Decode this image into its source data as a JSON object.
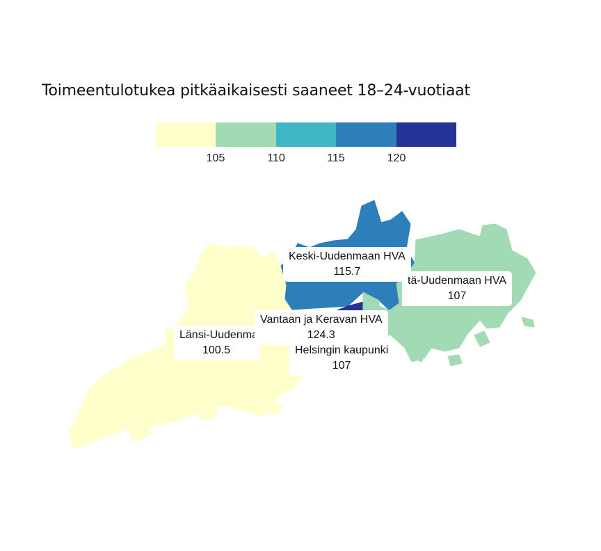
{
  "title": "Toimeentulotukea pitkäaikaisesti saaneet 18–24-vuotiaat",
  "legend": {
    "colors": [
      "#ffffcc",
      "#a1dab4",
      "#41b6c4",
      "#2c7fb8",
      "#253494"
    ],
    "ticks": [
      "105",
      "110",
      "115",
      "120"
    ]
  },
  "chart_data": {
    "type": "choropleth",
    "title": "Toimeentulotukea pitkäaikaisesti saaneet 18–24-vuotiaat",
    "bins": [
      105,
      110,
      115,
      120
    ],
    "regions": [
      {
        "name": "Länsi-Uudenmaan HVA",
        "display_name": "Länsi-Uudenma",
        "value": "100.5",
        "color": "#ffffcc"
      },
      {
        "name": "Keski-Uudenmaan HVA",
        "display_name": "Keski-Uudenmaan HVA",
        "value": "115.7",
        "color": "#2c7fb8"
      },
      {
        "name": "Itä-Uudenmaan HVA",
        "display_name": "tä-Uudenmaan HVA",
        "value": "107",
        "color": "#a1dab4"
      },
      {
        "name": "Vantaan ja Keravan HVA",
        "display_name": "Vantaan ja Keravan HVA",
        "value": "124.3",
        "color": "#253494"
      },
      {
        "name": "Helsingin kaupunki",
        "display_name": "Helsingin kaupunki",
        "value": "107",
        "color": "#a1dab4"
      }
    ]
  }
}
